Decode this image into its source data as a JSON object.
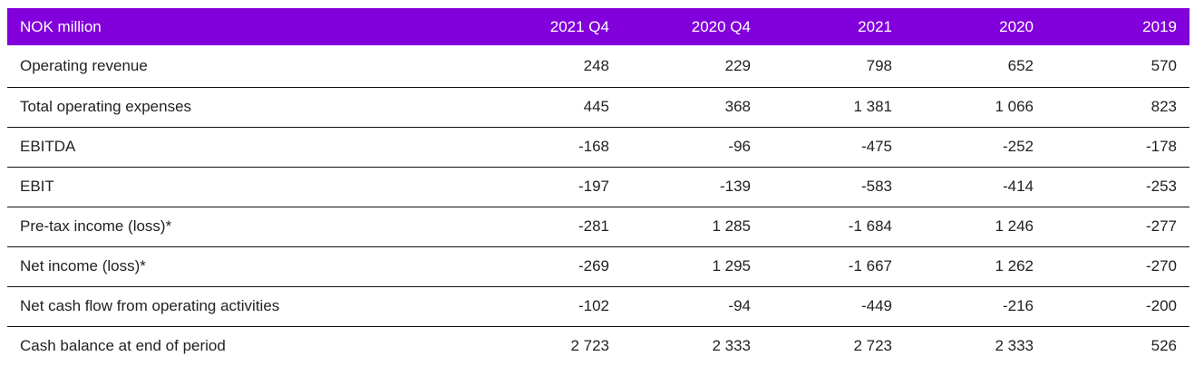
{
  "table": {
    "headers": [
      "NOK million",
      "2021 Q4",
      "2020 Q4",
      "2021",
      "2020",
      "2019"
    ],
    "rows": [
      [
        "Operating revenue",
        "248",
        "229",
        "798",
        "652",
        "570"
      ],
      [
        "Total operating expenses",
        "445",
        "368",
        "1 381",
        "1 066",
        "823"
      ],
      [
        "EBITDA",
        "-168",
        "-96",
        "-475",
        "-252",
        "-178"
      ],
      [
        "EBIT",
        "-197",
        "-139",
        "-583",
        "-414",
        "-253"
      ],
      [
        "Pre-tax income (loss)*",
        "-281",
        "1 285",
        "-1 684",
        "1 246",
        "-277"
      ],
      [
        "Net income (loss)*",
        "-269",
        "1 295",
        "-1 667",
        "1 262",
        "-270"
      ],
      [
        "Net cash flow from operating activities",
        "-102",
        "-94",
        "-449",
        "-216",
        "-200"
      ],
      [
        "Cash balance at end of period",
        "2 723",
        "2 333",
        "2 723",
        "2 333",
        "526"
      ]
    ]
  },
  "colors": {
    "header_bg": "#8200dc",
    "header_text": "#ffffff",
    "row_divider": "#111111"
  }
}
